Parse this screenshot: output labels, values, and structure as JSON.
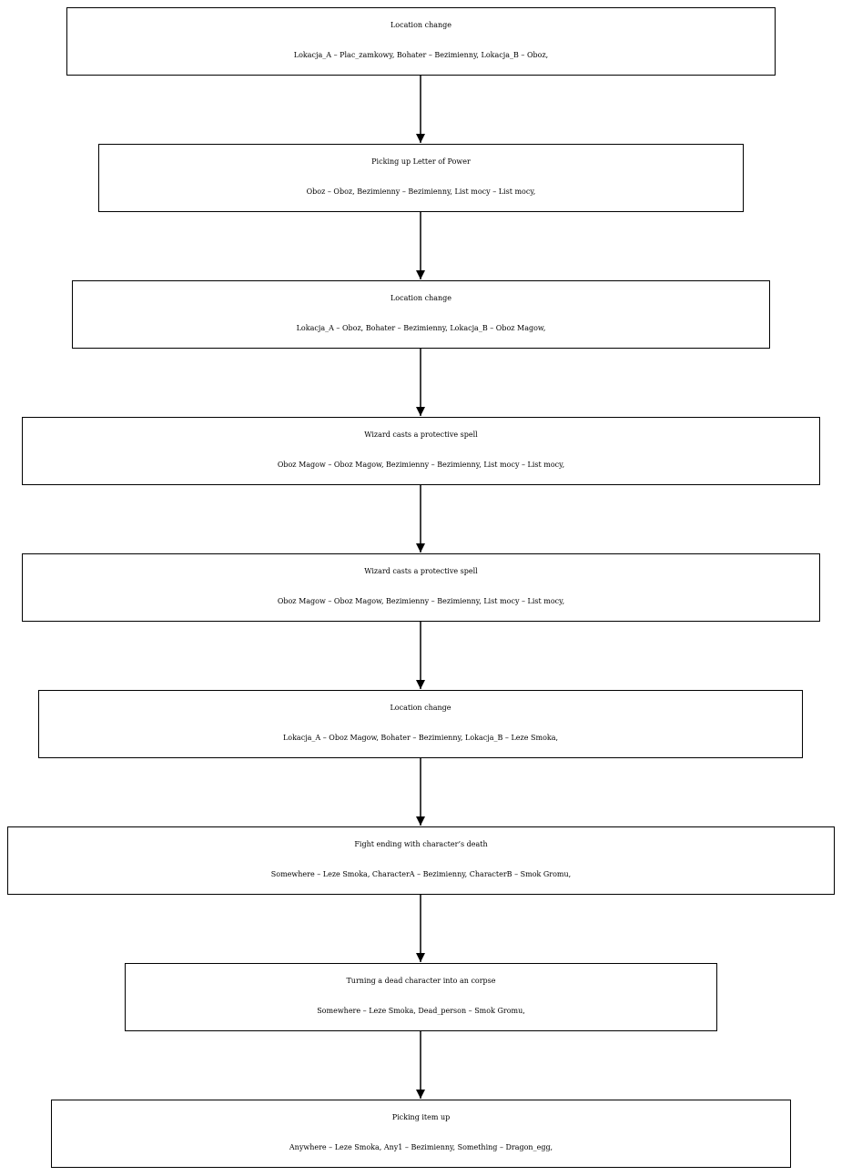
{
  "diagram": {
    "nodes": [
      {
        "title": "Location change",
        "params": "Lokacja_A – Plac_zamkowy, Bohater – Bezimienny, Lokacja_B – Oboz,"
      },
      {
        "title": "Picking up Letter of Power",
        "params": "Oboz – Oboz, Bezimienny – Bezimienny, List mocy – List mocy,"
      },
      {
        "title": "Location change",
        "params": "Lokacja_A – Oboz, Bohater – Bezimienny, Lokacja_B – Oboz Magow,"
      },
      {
        "title": "Wizard casts a protective spell",
        "params": "Oboz Magow – Oboz Magow, Bezimienny – Bezimienny, List mocy – List mocy,"
      },
      {
        "title": "Wizard casts a protective spell",
        "params": "Oboz Magow – Oboz Magow, Bezimienny – Bezimienny, List mocy – List mocy,"
      },
      {
        "title": "Location change",
        "params": "Lokacja_A – Oboz Magow, Bohater – Bezimienny, Lokacja_B – Leze Smoka,"
      },
      {
        "title": "Fight ending with character’s death",
        "params": "Somewhere – Leze Smoka, CharacterA – Bezimienny, CharacterB – Smok Gromu,"
      },
      {
        "title": "Turning a dead character into an corpse",
        "params": "Somewhere – Leze Smoka, Dead_person – Smok Gromu,"
      },
      {
        "title": "Picking item up",
        "params": "Anywhere – Leze Smoka, Any1 – Bezimienny, Something – Dragon_egg,"
      }
    ]
  }
}
